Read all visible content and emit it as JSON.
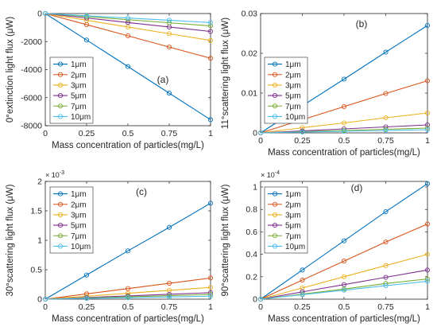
{
  "chart_data": [
    {
      "type": "line",
      "tag": "(a)",
      "xlabel": "Mass concentration of particles(mg/L)",
      "ylabel": "0°extinction light flux (μW)",
      "xlim": [
        0,
        1
      ],
      "ylim": [
        -8000,
        0
      ],
      "xticks": [
        "0",
        "0.25",
        "0.5",
        "0.75",
        "1"
      ],
      "xticks_values": [
        0,
        0.25,
        0.5,
        0.75,
        1
      ],
      "yticks": [
        "-8000",
        "-6000",
        "-4000",
        "-2000",
        "0"
      ],
      "yticks_values": [
        -8000,
        -6000,
        -4000,
        -2000,
        0
      ],
      "multiplier": "",
      "legend_position": "center-left",
      "x": [
        0,
        0.25,
        0.5,
        0.75,
        1
      ],
      "series": [
        {
          "name": "1μm",
          "color": "#0072BD",
          "values": [
            0,
            -1890,
            -3780,
            -5680,
            -7570
          ]
        },
        {
          "name": "2μm",
          "color": "#D95319",
          "values": [
            0,
            -790,
            -1590,
            -2390,
            -3190
          ]
        },
        {
          "name": "3μm",
          "color": "#EDB120",
          "values": [
            0,
            -480,
            -960,
            -1440,
            -1920
          ]
        },
        {
          "name": "5μm",
          "color": "#7E2F8E",
          "values": [
            0,
            -320,
            -640,
            -960,
            -1280
          ]
        },
        {
          "name": "7μm",
          "color": "#77AC30",
          "values": [
            0,
            -220,
            -440,
            -660,
            -880
          ]
        },
        {
          "name": "10μm",
          "color": "#4DBEEE",
          "values": [
            0,
            -160,
            -320,
            -480,
            -650
          ]
        }
      ]
    },
    {
      "type": "line",
      "tag": "(b)",
      "xlabel": "Mass concentration of particles(mg/L)",
      "ylabel": "11°scattering light flux (μW)",
      "xlim": [
        0,
        1
      ],
      "ylim": [
        0,
        0.03
      ],
      "xticks": [
        "0",
        "0.25",
        "0.5",
        "0.75",
        "1"
      ],
      "xticks_values": [
        0,
        0.25,
        0.5,
        0.75,
        1
      ],
      "yticks": [
        "0",
        "0.01",
        "0.02",
        "0.03"
      ],
      "yticks_values": [
        0,
        0.01,
        0.02,
        0.03
      ],
      "multiplier": "",
      "legend_position": "center-left",
      "x": [
        0,
        0.25,
        0.5,
        0.75,
        1
      ],
      "series": [
        {
          "name": "1μm",
          "color": "#0072BD",
          "values": [
            0,
            0.0068,
            0.0135,
            0.0203,
            0.027
          ]
        },
        {
          "name": "2μm",
          "color": "#D95319",
          "values": [
            0,
            0.0033,
            0.0066,
            0.0099,
            0.0131
          ]
        },
        {
          "name": "3μm",
          "color": "#EDB120",
          "values": [
            0,
            0.0013,
            0.0025,
            0.0038,
            0.005
          ]
        },
        {
          "name": "5μm",
          "color": "#7E2F8E",
          "values": [
            0,
            0.0005,
            0.001,
            0.0015,
            0.002
          ]
        },
        {
          "name": "7μm",
          "color": "#77AC30",
          "values": [
            0,
            0.0003,
            0.0006,
            0.0009,
            0.0012
          ]
        },
        {
          "name": "10μm",
          "color": "#4DBEEE",
          "values": [
            0,
            0.0002,
            0.0004,
            0.0006,
            0.0008
          ]
        }
      ]
    },
    {
      "type": "line",
      "tag": "(c)",
      "xlabel": "Mass concentration of particles(mg/L)",
      "ylabel": "30°scattering light flux (μW)",
      "xlim": [
        0,
        1
      ],
      "ylim": [
        0,
        2
      ],
      "xticks": [
        "0",
        "0.25",
        "0.5",
        "0.75",
        "1"
      ],
      "xticks_values": [
        0,
        0.25,
        0.5,
        0.75,
        1
      ],
      "yticks": [
        "0",
        "0.5",
        "1",
        "1.5",
        "2"
      ],
      "yticks_values": [
        0,
        0.5,
        1,
        1.5,
        2
      ],
      "multiplier": "× 10",
      "multiplier_exponent": "-3",
      "legend_position": "upper-left",
      "x": [
        0,
        0.25,
        0.5,
        0.75,
        1
      ],
      "series": [
        {
          "name": "1μm",
          "color": "#0072BD",
          "values": [
            0,
            0.41,
            0.82,
            1.22,
            1.63
          ]
        },
        {
          "name": "2μm",
          "color": "#D95319",
          "values": [
            0,
            0.09,
            0.18,
            0.27,
            0.36
          ]
        },
        {
          "name": "3μm",
          "color": "#EDB120",
          "values": [
            0,
            0.05,
            0.1,
            0.15,
            0.2
          ]
        },
        {
          "name": "5μm",
          "color": "#7E2F8E",
          "values": [
            0,
            0.028,
            0.055,
            0.083,
            0.11
          ]
        },
        {
          "name": "7μm",
          "color": "#77AC30",
          "values": [
            0,
            0.02,
            0.04,
            0.06,
            0.08
          ]
        },
        {
          "name": "10μm",
          "color": "#4DBEEE",
          "values": [
            0,
            0.013,
            0.025,
            0.038,
            0.05
          ]
        }
      ]
    },
    {
      "type": "line",
      "tag": "(d)",
      "xlabel": "Mass concentration of particles(mg/L)",
      "ylabel": "90°scattering light flux (μW)",
      "xlim": [
        0,
        1
      ],
      "ylim": [
        0,
        1.05
      ],
      "xticks": [
        "0",
        "0.25",
        "0.5",
        "0.75",
        "1"
      ],
      "xticks_values": [
        0,
        0.25,
        0.5,
        0.75,
        1
      ],
      "yticks": [
        "0",
        "0.2",
        "0.4",
        "0.6",
        "0.8",
        "1"
      ],
      "yticks_values": [
        0,
        0.2,
        0.4,
        0.6,
        0.8,
        1
      ],
      "multiplier": "× 10",
      "multiplier_exponent": "-4",
      "legend_position": "upper-left",
      "x": [
        0,
        0.25,
        0.5,
        0.75,
        1
      ],
      "series": [
        {
          "name": "1μm",
          "color": "#0072BD",
          "values": [
            0,
            0.26,
            0.52,
            0.78,
            1.03
          ]
        },
        {
          "name": "2μm",
          "color": "#D95319",
          "values": [
            0,
            0.17,
            0.34,
            0.51,
            0.67
          ]
        },
        {
          "name": "3μm",
          "color": "#EDB120",
          "values": [
            0,
            0.1,
            0.2,
            0.3,
            0.4
          ]
        },
        {
          "name": "5μm",
          "color": "#7E2F8E",
          "values": [
            0,
            0.065,
            0.13,
            0.195,
            0.26
          ]
        },
        {
          "name": "7μm",
          "color": "#77AC30",
          "values": [
            0,
            0.045,
            0.09,
            0.14,
            0.18
          ]
        },
        {
          "name": "10μm",
          "color": "#4DBEEE",
          "values": [
            0,
            0.04,
            0.08,
            0.12,
            0.16
          ]
        }
      ]
    }
  ]
}
